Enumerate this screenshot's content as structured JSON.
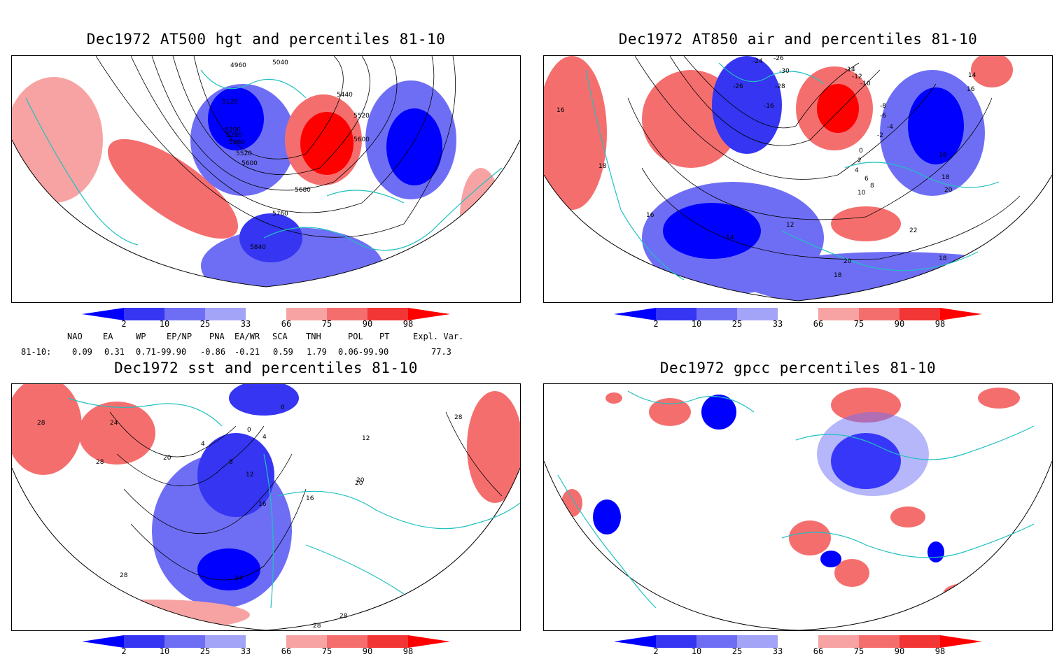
{
  "panels": [
    {
      "title": "Dec1972 AT500 hgt and percentiles 81-10",
      "contour_labels": [
        "4960",
        "5040",
        "5120",
        "5200",
        "5280",
        "5360",
        "5440",
        "5520",
        "5520",
        "5600",
        "5600",
        "5680",
        "5760",
        "5840"
      ]
    },
    {
      "title": "Dec1972 AT850 air and percentiles 81-10",
      "contour_labels": [
        "-24",
        "-26",
        "-30",
        "-14",
        "-12",
        "-10",
        "-26",
        "-28",
        "-16",
        "-8",
        "-6",
        "-4",
        "-2",
        "0",
        "2",
        "4",
        "6",
        "8",
        "10",
        "12",
        "14",
        "14",
        "16",
        "16",
        "16",
        "18",
        "18",
        "18",
        "20",
        "20",
        "22",
        "18",
        "16"
      ]
    },
    {
      "title": "Dec1972 sst and percentiles 81-10",
      "contour_labels": [
        "28",
        "24",
        "28",
        "20",
        "0",
        "0",
        "4",
        "4",
        "8",
        "12",
        "16",
        "16",
        "20",
        "24",
        "28",
        "28",
        "28",
        "12",
        "20",
        "28"
      ]
    },
    {
      "title": "Dec1972 gpcc percentiles 81-10",
      "contour_labels": []
    }
  ],
  "colorbar": {
    "ticks": [
      "2",
      "10",
      "25",
      "33",
      "66",
      "75",
      "90",
      "98"
    ],
    "colors": [
      "#0000ff",
      "#3535f2",
      "#6e6ef5",
      "#a3a3f8",
      "#ffffff",
      "#f7a3a3",
      "#f56e6e",
      "#f23535",
      "#ff0000"
    ]
  },
  "teleconnections": {
    "headers": [
      "NAO",
      "EA",
      "WP",
      "EP/NP",
      "PNA",
      "EA/WR",
      "SCA",
      "TNH",
      "POL",
      "PT",
      "Expl. Var."
    ],
    "row_label": "81-10:",
    "values": [
      "0.09",
      "0.31",
      "0.71-99.90",
      "-0.86",
      "-0.21",
      "0.59",
      "1.79",
      "0.06-99.90",
      "77.3"
    ]
  }
}
